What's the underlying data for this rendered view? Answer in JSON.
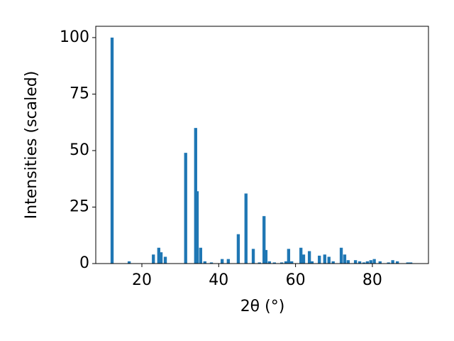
{
  "chart_data": {
    "type": "bar",
    "xlabel": "2θ (°)",
    "ylabel": "Intensities (scaled)",
    "x": [
      12.25,
      16.7,
      23,
      24.4,
      25,
      26.1,
      31.4,
      34,
      34.4,
      35.3,
      36.4,
      38.1,
      40.9,
      42.5,
      45.1,
      47.1,
      49,
      50.6,
      51.8,
      52.3,
      53.2,
      54.5,
      56.4,
      57.5,
      58.2,
      59,
      61.4,
      62.1,
      63.6,
      64.3,
      66.2,
      67.6,
      68.7,
      69.8,
      71.9,
      72.8,
      73.7,
      75.6,
      76.7,
      77.8,
      78.7,
      79.6,
      80.5,
      82,
      84.2,
      85.3,
      86.5,
      89.2,
      90
    ],
    "values": [
      100,
      1,
      4,
      7,
      5,
      3,
      49,
      60,
      32,
      7,
      1,
      0.5,
      2,
      2,
      13,
      31,
      6.5,
      0.5,
      21,
      6,
      1,
      0.5,
      0.5,
      1,
      6.5,
      1,
      7,
      4,
      5.5,
      1,
      3.5,
      4,
      3,
      1,
      7,
      4,
      1.5,
      1.5,
      1,
      0.5,
      1,
      1.5,
      2,
      1,
      0.5,
      1.5,
      1,
      0.5,
      0.5
    ],
    "color": "#1f77b4",
    "xlim": [
      8,
      94.6
    ],
    "xticks": [
      20,
      40,
      60,
      80
    ],
    "ylim": [
      0,
      105
    ],
    "yticks": [
      0,
      25,
      50,
      75,
      100
    ]
  }
}
